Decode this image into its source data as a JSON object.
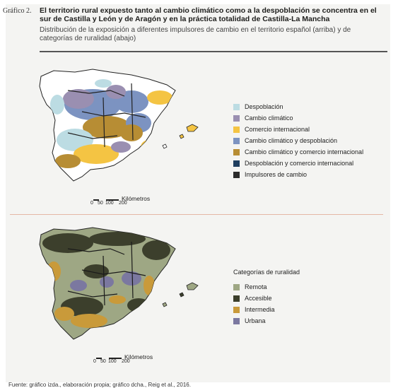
{
  "figure": {
    "label": "Gráfico 2.",
    "title": "El territorio rural expuesto tanto al cambio climático como a la despoblación se concentra en el sur de Castilla y León y de Aragón y en la práctica totalidad de Castilla-La Mancha",
    "subtitle": "Distribución de la exposición a diferentes impulsores de cambio en el territorio español (arriba) y de categorías de ruralidad (abajo)"
  },
  "top_map": {
    "legend": {
      "items": [
        {
          "label": "Despoblación",
          "color": "#bcdce3"
        },
        {
          "label": "Cambio climático",
          "color": "#9a8fb1"
        },
        {
          "label": "Comercio internacional",
          "color": "#f4c443"
        },
        {
          "label": "Cambio climático y despoblación",
          "color": "#7c93c1"
        },
        {
          "label": "Cambio climático y comercio internacional",
          "color": "#b78d34"
        },
        {
          "label": "Despoblación y comercio internacional",
          "color": "#1f3e5f"
        },
        {
          "label": "Impulsores de cambio",
          "color": "#2b2b2b"
        }
      ]
    },
    "scale": {
      "unit": "Kilómetros",
      "ticks": [
        "0",
        "50",
        "100",
        "200"
      ]
    }
  },
  "bottom_map": {
    "legend": {
      "title": "Categorías de ruralidad",
      "items": [
        {
          "label": "Remota",
          "color": "#9ea784"
        },
        {
          "label": "Accesible",
          "color": "#3c3f2c"
        },
        {
          "label": "Intermedia",
          "color": "#c99a3a"
        },
        {
          "label": "Urbana",
          "color": "#7b78a0"
        }
      ]
    },
    "scale": {
      "unit": "Kilómetros",
      "ticks": [
        "0",
        "50",
        "100",
        "200"
      ]
    }
  },
  "source": "Fuente: gráfico izda., elaboración propia; gráfico dcha., Reig et al., 2016."
}
